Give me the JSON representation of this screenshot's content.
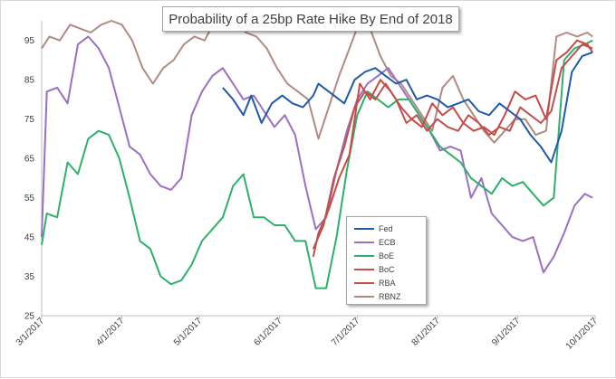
{
  "chart_data": {
    "type": "line",
    "title": "Probability of a 25bp Rate Hike By End of 2018",
    "xlabel": "",
    "ylabel": "",
    "ylim": [
      25,
      100
    ],
    "yticks": [
      25,
      35,
      45,
      55,
      65,
      75,
      85,
      95
    ],
    "x_ticks": [
      "3/1/2017",
      "4/1/2017",
      "5/1/2017",
      "6/1/2017",
      "7/1/2017",
      "8/1/2017",
      "9/1/2017",
      "10/1/2017"
    ],
    "grid": false,
    "legend_position": "center-right",
    "colors": {
      "Fed": "#1f5aa6",
      "ECB": "#9b6fc3",
      "BoE": "#2eb06a",
      "BoC": "#c0504d",
      "RBA": "#c94a44",
      "RBNZ": "#b08b83"
    },
    "series": [
      {
        "name": "Fed",
        "x": [
          "5/10/2017",
          "5/14/2017",
          "5/18/2017",
          "5/21/2017",
          "5/25/2017",
          "5/29/2017",
          "6/2/2017",
          "6/6/2017",
          "6/10/2017",
          "6/14/2017",
          "6/16/2017",
          "6/18/2017",
          "6/22/2017",
          "6/26/2017",
          "6/30/2017",
          "7/4/2017",
          "7/8/2017",
          "7/12/2017",
          "7/16/2017",
          "7/20/2017",
          "7/24/2017",
          "7/28/2017",
          "8/1/2017",
          "8/5/2017",
          "8/9/2017",
          "8/13/2017",
          "8/17/2017",
          "8/21/2017",
          "8/25/2017",
          "8/29/2017",
          "9/2/2017",
          "9/6/2017",
          "9/10/2017",
          "9/14/2017",
          "9/18/2017",
          "9/22/2017",
          "9/26/2017",
          "9/30/2017"
        ],
        "values": [
          83,
          80,
          76,
          81,
          74,
          79,
          81,
          79,
          78,
          81,
          84,
          83,
          81,
          79,
          85,
          87,
          88,
          86,
          84,
          85,
          80,
          81,
          80,
          78,
          79,
          80,
          77,
          76,
          79,
          77,
          75,
          71,
          68,
          64,
          72,
          87,
          91,
          92
        ]
      },
      {
        "name": "ECB",
        "x": [
          "3/1/2017",
          "3/3/2017",
          "3/7/2017",
          "3/11/2017",
          "3/15/2017",
          "3/19/2017",
          "3/23/2017",
          "3/27/2017",
          "3/31/2017",
          "4/4/2017",
          "4/8/2017",
          "4/12/2017",
          "4/16/2017",
          "4/20/2017",
          "4/24/2017",
          "4/28/2017",
          "5/2/2017",
          "5/6/2017",
          "5/10/2017",
          "5/14/2017",
          "5/18/2017",
          "5/22/2017",
          "5/26/2017",
          "5/30/2017",
          "6/3/2017",
          "6/7/2017",
          "6/11/2017",
          "6/15/2017",
          "6/19/2017",
          "6/23/2017",
          "6/27/2017",
          "7/1/2017",
          "7/5/2017",
          "7/9/2017",
          "7/13/2017",
          "7/17/2017",
          "7/21/2017",
          "7/25/2017",
          "7/29/2017",
          "8/2/2017",
          "8/6/2017",
          "8/10/2017",
          "8/14/2017",
          "8/18/2017",
          "8/22/2017",
          "8/26/2017",
          "8/30/2017",
          "9/3/2017",
          "9/7/2017",
          "9/11/2017",
          "9/15/2017",
          "9/19/2017",
          "9/23/2017",
          "9/27/2017",
          "9/30/2017"
        ],
        "values": [
          45,
          82,
          83,
          79,
          94,
          96,
          93,
          88,
          78,
          68,
          66,
          61,
          58,
          57,
          60,
          76,
          82,
          86,
          88,
          84,
          80,
          81,
          77,
          73,
          76,
          71,
          58,
          47,
          50,
          62,
          72,
          80,
          84,
          86,
          88,
          84,
          80,
          76,
          72,
          67,
          68,
          67,
          55,
          60,
          51,
          48,
          45,
          44,
          45,
          36,
          40,
          46,
          53,
          56,
          55
        ]
      },
      {
        "name": "BoE",
        "x": [
          "3/1/2017",
          "3/3/2017",
          "3/7/2017",
          "3/11/2017",
          "3/15/2017",
          "3/19/2017",
          "3/23/2017",
          "3/27/2017",
          "3/31/2017",
          "4/4/2017",
          "4/8/2017",
          "4/12/2017",
          "4/16/2017",
          "4/20/2017",
          "4/24/2017",
          "4/28/2017",
          "5/2/2017",
          "5/6/2017",
          "5/10/2017",
          "5/14/2017",
          "5/18/2017",
          "5/22/2017",
          "5/26/2017",
          "5/30/2017",
          "6/3/2017",
          "6/7/2017",
          "6/11/2017",
          "6/15/2017",
          "6/19/2017",
          "6/23/2017",
          "6/27/2017",
          "7/1/2017",
          "7/5/2017",
          "7/9/2017",
          "7/13/2017",
          "7/17/2017",
          "7/21/2017",
          "7/25/2017",
          "7/29/2017",
          "8/2/2017",
          "8/6/2017",
          "8/10/2017",
          "8/14/2017",
          "8/18/2017",
          "8/22/2017",
          "8/26/2017",
          "8/30/2017",
          "9/3/2017",
          "9/7/2017",
          "9/11/2017",
          "9/15/2017",
          "9/19/2017",
          "9/23/2017",
          "9/27/2017",
          "9/30/2017"
        ],
        "values": [
          43,
          51,
          50,
          64,
          61,
          70,
          72,
          71,
          65,
          55,
          44,
          42,
          35,
          33,
          34,
          38,
          44,
          47,
          50,
          58,
          61,
          50,
          50,
          48,
          48,
          44,
          44,
          32,
          32,
          45,
          62,
          76,
          82,
          80,
          78,
          80,
          80,
          76,
          72,
          68,
          66,
          64,
          60,
          58,
          56,
          60,
          58,
          59,
          56,
          53,
          55,
          90,
          93,
          94,
          95
        ]
      },
      {
        "name": "BoC",
        "x": [
          "6/14/2017",
          "6/18/2017",
          "6/22/2017",
          "6/26/2017",
          "6/30/2017",
          "7/4/2017",
          "7/8/2017",
          "7/12/2017",
          "7/16/2017",
          "7/20/2017",
          "7/24/2017",
          "7/28/2017",
          "8/1/2017",
          "8/5/2017",
          "8/9/2017",
          "8/13/2017",
          "8/17/2017",
          "8/21/2017",
          "8/25/2017",
          "8/29/2017",
          "9/2/2017",
          "9/6/2017",
          "9/10/2017",
          "9/14/2017",
          "9/18/2017",
          "9/22/2017",
          "9/26/2017",
          "9/30/2017"
        ],
        "values": [
          42,
          48,
          60,
          68,
          78,
          82,
          80,
          84,
          80,
          74,
          76,
          72,
          75,
          73,
          72,
          76,
          74,
          71,
          73,
          72,
          78,
          76,
          74,
          77,
          88,
          91,
          94,
          93
        ]
      },
      {
        "name": "RBA",
        "x": [
          "6/14/2017",
          "6/16/2017",
          "6/20/2017",
          "6/24/2017",
          "6/28/2017",
          "7/2/2017",
          "7/6/2017",
          "7/10/2017",
          "7/14/2017",
          "7/18/2017",
          "7/22/2017",
          "7/26/2017",
          "7/30/2017",
          "8/3/2017",
          "8/7/2017",
          "8/11/2017",
          "8/15/2017",
          "8/19/2017",
          "8/23/2017",
          "8/27/2017",
          "8/31/2017",
          "9/4/2017",
          "9/8/2017",
          "9/12/2017",
          "9/16/2017",
          "9/20/2017",
          "9/24/2017",
          "9/28/2017",
          "9/30/2017"
        ],
        "values": [
          40,
          46,
          52,
          60,
          66,
          84,
          80,
          85,
          82,
          78,
          75,
          73,
          79,
          76,
          78,
          74,
          72,
          73,
          71,
          76,
          82,
          80,
          81,
          75,
          90,
          92,
          95,
          94,
          92
        ]
      },
      {
        "name": "RBNZ",
        "x": [
          "3/1/2017",
          "3/4/2017",
          "3/8/2017",
          "3/12/2017",
          "3/16/2017",
          "3/20/2017",
          "3/24/2017",
          "3/28/2017",
          "4/1/2017",
          "4/5/2017",
          "4/9/2017",
          "4/13/2017",
          "4/17/2017",
          "4/21/2017",
          "4/25/2017",
          "4/29/2017",
          "5/3/2017",
          "5/7/2017",
          "5/11/2017",
          "5/15/2017",
          "5/19/2017",
          "5/23/2017",
          "5/27/2017",
          "5/31/2017",
          "6/4/2017",
          "6/8/2017",
          "6/12/2017",
          "6/16/2017",
          "6/20/2017",
          "6/24/2017",
          "6/28/2017",
          "7/2/2017",
          "7/6/2017",
          "7/10/2017",
          "7/14/2017",
          "7/18/2017",
          "7/22/2017",
          "7/26/2017",
          "7/30/2017",
          "8/3/2017",
          "8/7/2017",
          "8/11/2017",
          "8/15/2017",
          "8/19/2017",
          "8/23/2017",
          "8/27/2017",
          "8/31/2017",
          "9/4/2017",
          "9/8/2017",
          "9/12/2017",
          "9/16/2017",
          "9/20/2017",
          "9/24/2017",
          "9/28/2017",
          "9/30/2017"
        ],
        "values": [
          93,
          96,
          95,
          99,
          98,
          97,
          99,
          100,
          99,
          95,
          88,
          84,
          88,
          90,
          94,
          96,
          95,
          100,
          99,
          99,
          97,
          96,
          93,
          88,
          84,
          82,
          80,
          70,
          78,
          86,
          93,
          100,
          98,
          91,
          86,
          84,
          80,
          76,
          72,
          83,
          86,
          80,
          76,
          72,
          69,
          72,
          75,
          75,
          71,
          72,
          96,
          97,
          96,
          97,
          96
        ]
      }
    ]
  }
}
